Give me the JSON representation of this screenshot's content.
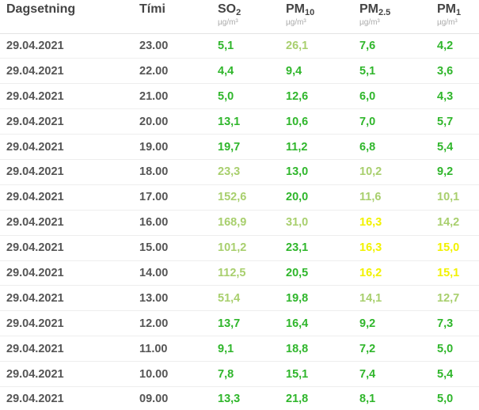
{
  "table": {
    "headers": {
      "date": "Dagsetning",
      "time": "Tími",
      "so2": {
        "base": "SO",
        "sub": "2",
        "unit": "µg/m³"
      },
      "pm10": {
        "base": "PM",
        "sub": "10",
        "unit": "µg/m³"
      },
      "pm25": {
        "base": "PM",
        "sub": "2.5",
        "unit": "µg/m³"
      },
      "pm1": {
        "base": "PM",
        "sub": "1",
        "unit": "µg/m³"
      }
    },
    "level_colors": {
      "good": "#2fb62b",
      "fair": "#a8cf6d",
      "moderate": "#f2f200"
    },
    "rows": [
      {
        "date": "29.04.2021",
        "time": "23.00",
        "so2": {
          "v": "5,1",
          "lvl": "good"
        },
        "pm10": {
          "v": "26,1",
          "lvl": "fair"
        },
        "pm25": {
          "v": "7,6",
          "lvl": "good"
        },
        "pm1": {
          "v": "4,2",
          "lvl": "good"
        }
      },
      {
        "date": "29.04.2021",
        "time": "22.00",
        "so2": {
          "v": "4,4",
          "lvl": "good"
        },
        "pm10": {
          "v": "9,4",
          "lvl": "good"
        },
        "pm25": {
          "v": "5,1",
          "lvl": "good"
        },
        "pm1": {
          "v": "3,6",
          "lvl": "good"
        }
      },
      {
        "date": "29.04.2021",
        "time": "21.00",
        "so2": {
          "v": "5,0",
          "lvl": "good"
        },
        "pm10": {
          "v": "12,6",
          "lvl": "good"
        },
        "pm25": {
          "v": "6,0",
          "lvl": "good"
        },
        "pm1": {
          "v": "4,3",
          "lvl": "good"
        }
      },
      {
        "date": "29.04.2021",
        "time": "20.00",
        "so2": {
          "v": "13,1",
          "lvl": "good"
        },
        "pm10": {
          "v": "10,6",
          "lvl": "good"
        },
        "pm25": {
          "v": "7,0",
          "lvl": "good"
        },
        "pm1": {
          "v": "5,7",
          "lvl": "good"
        }
      },
      {
        "date": "29.04.2021",
        "time": "19.00",
        "so2": {
          "v": "19,7",
          "lvl": "good"
        },
        "pm10": {
          "v": "11,2",
          "lvl": "good"
        },
        "pm25": {
          "v": "6,8",
          "lvl": "good"
        },
        "pm1": {
          "v": "5,4",
          "lvl": "good"
        }
      },
      {
        "date": "29.04.2021",
        "time": "18.00",
        "so2": {
          "v": "23,3",
          "lvl": "fair"
        },
        "pm10": {
          "v": "13,0",
          "lvl": "good"
        },
        "pm25": {
          "v": "10,2",
          "lvl": "fair"
        },
        "pm1": {
          "v": "9,2",
          "lvl": "good"
        }
      },
      {
        "date": "29.04.2021",
        "time": "17.00",
        "so2": {
          "v": "152,6",
          "lvl": "fair"
        },
        "pm10": {
          "v": "20,0",
          "lvl": "good"
        },
        "pm25": {
          "v": "11,6",
          "lvl": "fair"
        },
        "pm1": {
          "v": "10,1",
          "lvl": "fair"
        }
      },
      {
        "date": "29.04.2021",
        "time": "16.00",
        "so2": {
          "v": "168,9",
          "lvl": "fair"
        },
        "pm10": {
          "v": "31,0",
          "lvl": "fair"
        },
        "pm25": {
          "v": "16,3",
          "lvl": "moderate"
        },
        "pm1": {
          "v": "14,2",
          "lvl": "fair"
        }
      },
      {
        "date": "29.04.2021",
        "time": "15.00",
        "so2": {
          "v": "101,2",
          "lvl": "fair"
        },
        "pm10": {
          "v": "23,1",
          "lvl": "good"
        },
        "pm25": {
          "v": "16,3",
          "lvl": "moderate"
        },
        "pm1": {
          "v": "15,0",
          "lvl": "moderate"
        }
      },
      {
        "date": "29.04.2021",
        "time": "14.00",
        "so2": {
          "v": "112,5",
          "lvl": "fair"
        },
        "pm10": {
          "v": "20,5",
          "lvl": "good"
        },
        "pm25": {
          "v": "16,2",
          "lvl": "moderate"
        },
        "pm1": {
          "v": "15,1",
          "lvl": "moderate"
        }
      },
      {
        "date": "29.04.2021",
        "time": "13.00",
        "so2": {
          "v": "51,4",
          "lvl": "fair"
        },
        "pm10": {
          "v": "19,8",
          "lvl": "good"
        },
        "pm25": {
          "v": "14,1",
          "lvl": "fair"
        },
        "pm1": {
          "v": "12,7",
          "lvl": "fair"
        }
      },
      {
        "date": "29.04.2021",
        "time": "12.00",
        "so2": {
          "v": "13,7",
          "lvl": "good"
        },
        "pm10": {
          "v": "16,4",
          "lvl": "good"
        },
        "pm25": {
          "v": "9,2",
          "lvl": "good"
        },
        "pm1": {
          "v": "7,3",
          "lvl": "good"
        }
      },
      {
        "date": "29.04.2021",
        "time": "11.00",
        "so2": {
          "v": "9,1",
          "lvl": "good"
        },
        "pm10": {
          "v": "18,8",
          "lvl": "good"
        },
        "pm25": {
          "v": "7,2",
          "lvl": "good"
        },
        "pm1": {
          "v": "5,0",
          "lvl": "good"
        }
      },
      {
        "date": "29.04.2021",
        "time": "10.00",
        "so2": {
          "v": "7,8",
          "lvl": "good"
        },
        "pm10": {
          "v": "15,1",
          "lvl": "good"
        },
        "pm25": {
          "v": "7,4",
          "lvl": "good"
        },
        "pm1": {
          "v": "5,4",
          "lvl": "good"
        }
      },
      {
        "date": "29.04.2021",
        "time": "09.00",
        "so2": {
          "v": "13,3",
          "lvl": "good"
        },
        "pm10": {
          "v": "21,8",
          "lvl": "good"
        },
        "pm25": {
          "v": "8,1",
          "lvl": "good"
        },
        "pm1": {
          "v": "5,0",
          "lvl": "good"
        }
      }
    ]
  }
}
